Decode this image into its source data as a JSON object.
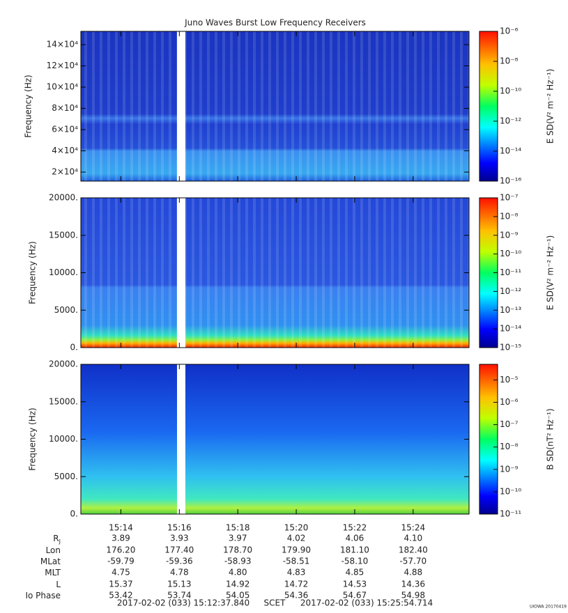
{
  "chart_data": {
    "type": "spectrogram",
    "title": "Juno Waves Burst Low Frequency Receivers",
    "xlim": [
      "15:12:37.840",
      "15:25:54.714"
    ],
    "xticks": [
      "15:14",
      "15:16",
      "15:18",
      "15:20",
      "15:22",
      "15:24"
    ],
    "panels": [
      {
        "ylabel": "Frequency (Hz)",
        "ylim": [
          11500,
          152500
        ],
        "yticks": [
          {
            "value": 20000,
            "label": "2×10⁴"
          },
          {
            "value": 40000,
            "label": "4×10⁴"
          },
          {
            "value": 60000,
            "label": "6×10⁴"
          },
          {
            "value": 80000,
            "label": "8×10⁴"
          },
          {
            "value": 100000,
            "label": "10×10⁴"
          },
          {
            "value": 120000,
            "label": "12×10⁴"
          },
          {
            "value": 140000,
            "label": "14×10⁴"
          }
        ],
        "zlabel": "E SD(V² m⁻² Hz⁻¹)",
        "zscale": "log",
        "zlim": [
          1e-16,
          1e-06
        ],
        "zticks": [
          {
            "value": 1e-16,
            "label": "10⁻¹⁶"
          },
          {
            "value": 1e-14,
            "label": "10⁻¹⁴"
          },
          {
            "value": 1e-12,
            "label": "10⁻¹²"
          },
          {
            "value": 1e-10,
            "label": "10⁻¹⁰"
          },
          {
            "value": 1e-08,
            "label": "10⁻⁸"
          },
          {
            "value": 1e-06,
            "label": "10⁻⁶"
          }
        ]
      },
      {
        "ylabel": "Frequency (Hz)",
        "ylim": [
          0,
          20000
        ],
        "yticks": [
          {
            "value": 0,
            "label": "0."
          },
          {
            "value": 5000,
            "label": "5000."
          },
          {
            "value": 10000,
            "label": "10000."
          },
          {
            "value": 15000,
            "label": "15000."
          },
          {
            "value": 20000,
            "label": "20000."
          }
        ],
        "zlabel": "E SD(V² m⁻² Hz⁻¹)",
        "zscale": "log",
        "zlim": [
          1e-15,
          1e-07
        ],
        "zticks": [
          {
            "value": 1e-15,
            "label": "10⁻¹⁵"
          },
          {
            "value": 1e-14,
            "label": "10⁻¹⁴"
          },
          {
            "value": 1e-13,
            "label": "10⁻¹³"
          },
          {
            "value": 1e-12,
            "label": "10⁻¹²"
          },
          {
            "value": 1e-11,
            "label": "10⁻¹¹"
          },
          {
            "value": 1e-10,
            "label": "10⁻¹⁰"
          },
          {
            "value": 1e-09,
            "label": "10⁻⁹"
          },
          {
            "value": 1e-08,
            "label": "10⁻⁸"
          },
          {
            "value": 1e-07,
            "label": "10⁻⁷"
          }
        ]
      },
      {
        "ylabel": "Frequency (Hz)",
        "ylim": [
          0,
          20000
        ],
        "yticks": [
          {
            "value": 0,
            "label": "0."
          },
          {
            "value": 5000,
            "label": "5000."
          },
          {
            "value": 10000,
            "label": "10000."
          },
          {
            "value": 15000,
            "label": "15000."
          },
          {
            "value": 20000,
            "label": "20000."
          }
        ],
        "zlabel": "B SD(nT² Hz⁻¹)",
        "zscale": "log",
        "zlim": [
          1e-11,
          5e-05
        ],
        "zticks": [
          {
            "value": 1e-11,
            "label": "10⁻¹¹"
          },
          {
            "value": 1e-10,
            "label": "10⁻¹⁰"
          },
          {
            "value": 1e-09,
            "label": "10⁻⁹"
          },
          {
            "value": 1e-08,
            "label": "10⁻⁸"
          },
          {
            "value": 1e-07,
            "label": "10⁻⁷"
          },
          {
            "value": 1e-06,
            "label": "10⁻⁶"
          },
          {
            "value": 1e-05,
            "label": "10⁻⁵"
          }
        ]
      }
    ],
    "ephemeris": [
      {
        "label": "R",
        "sub": "J",
        "values": [
          "3.89",
          "3.93",
          "3.97",
          "4.02",
          "4.06",
          "4.10"
        ]
      },
      {
        "label": "Lon",
        "values": [
          "176.20",
          "177.40",
          "178.70",
          "179.90",
          "181.10",
          "182.40"
        ]
      },
      {
        "label": "MLat",
        "values": [
          "-59.79",
          "-59.36",
          "-58.93",
          "-58.51",
          "-58.10",
          "-57.70"
        ]
      },
      {
        "label": "MLT",
        "values": [
          "4.75",
          "4.78",
          "4.80",
          "4.83",
          "4.85",
          "4.88"
        ]
      },
      {
        "label": "L",
        "values": [
          "15.37",
          "15.13",
          "14.92",
          "14.72",
          "14.53",
          "14.36"
        ]
      },
      {
        "label": "Io Phase",
        "values": [
          "53.42",
          "53.74",
          "54.05",
          "54.36",
          "54.67",
          "54.98"
        ]
      }
    ],
    "footer": {
      "start": "2017-02-02 (033) 15:12:37.840",
      "scet": "SCET",
      "end": "2017-02-02 (033) 15:25:54.714"
    },
    "credit": "UIOWA 20170419"
  }
}
